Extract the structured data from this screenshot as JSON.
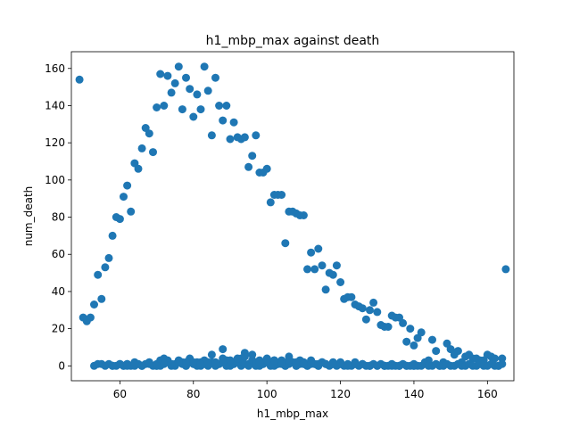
{
  "chart_data": {
    "type": "scatter",
    "title": "h1_mbp_max against death",
    "xlabel": "h1_mbp_max",
    "ylabel": "num_death",
    "xlim": [
      46.8,
      167.2
    ],
    "ylim": [
      -8,
      169
    ],
    "xticks": [
      60,
      80,
      100,
      120,
      140,
      160
    ],
    "yticks": [
      0,
      20,
      40,
      60,
      80,
      100,
      120,
      140,
      160
    ],
    "grid": false,
    "legend": "none",
    "marker_color": "#1f77b4",
    "series": [
      {
        "x": [
          49,
          50,
          51,
          52,
          53,
          54,
          55,
          56,
          57,
          58,
          59,
          60,
          61,
          62,
          63,
          64,
          65,
          66,
          67,
          68,
          69,
          70,
          71,
          72,
          73,
          74,
          75,
          76,
          77,
          78,
          79,
          80,
          81,
          82,
          83,
          84,
          85,
          86,
          87,
          88,
          89,
          90,
          91,
          92,
          93,
          94,
          95,
          96,
          97,
          98,
          99,
          100,
          101,
          102,
          103,
          104,
          105,
          106,
          107,
          108,
          109,
          110,
          111,
          112,
          113,
          114,
          115,
          116,
          117,
          118,
          119,
          120,
          121,
          122,
          123,
          124,
          125,
          126,
          127,
          128,
          129,
          130,
          131,
          132,
          133,
          134,
          135,
          136,
          137,
          138,
          139,
          140,
          141,
          142,
          143,
          144,
          145,
          146,
          147,
          148,
          149,
          150,
          151,
          152,
          153,
          154,
          155,
          156,
          157,
          158,
          159,
          160,
          161,
          162,
          163,
          164,
          165,
          53,
          55,
          56,
          57,
          58,
          59,
          60,
          61,
          62,
          63,
          64,
          65,
          66,
          67,
          68,
          69,
          70,
          71,
          72,
          73,
          74,
          75,
          76,
          77,
          78,
          79,
          80,
          81,
          82,
          83,
          84,
          85,
          86,
          87,
          88,
          89,
          90,
          91,
          92,
          93,
          94,
          95,
          96,
          97,
          98,
          99,
          100,
          101,
          102,
          103,
          104,
          105,
          106,
          107,
          108,
          109,
          110,
          111,
          112,
          113,
          114,
          115,
          116,
          117,
          118,
          119,
          120,
          121,
          122,
          123,
          124,
          125,
          126,
          127,
          128,
          129,
          130,
          131,
          132,
          133,
          134,
          135,
          136,
          137,
          138,
          139,
          140,
          141,
          142,
          143,
          144,
          145,
          146,
          147,
          148,
          149,
          150,
          151,
          152,
          153,
          154,
          155,
          156,
          157,
          158,
          159,
          160,
          161,
          162,
          163,
          164,
          54,
          58,
          60,
          61,
          62,
          64,
          66,
          68,
          70,
          71,
          72,
          73,
          74,
          75,
          76,
          77,
          78,
          79,
          80,
          81,
          82,
          83,
          84,
          85,
          86,
          87,
          88,
          89,
          90,
          91,
          92,
          93,
          94,
          95,
          96,
          97,
          98,
          99,
          100,
          101,
          102,
          103,
          104,
          105,
          106,
          107,
          108,
          109,
          110,
          111,
          112,
          113,
          114,
          115,
          116,
          118,
          120,
          122,
          124,
          126,
          128,
          130,
          132,
          134,
          136,
          138,
          140,
          62,
          66,
          70,
          72,
          74,
          76,
          78,
          80,
          82,
          84,
          86,
          88,
          90,
          92,
          94,
          96,
          98,
          100,
          102,
          104,
          106,
          108,
          110,
          112,
          114,
          116,
          118,
          120,
          124,
          128,
          132,
          136,
          140
        ],
        "y": [
          154,
          26,
          24,
          26,
          33,
          49,
          36,
          53,
          58,
          70,
          80,
          79,
          91,
          97,
          83,
          109,
          106,
          117,
          128,
          125,
          115,
          139,
          157,
          140,
          156,
          147,
          152,
          161,
          138,
          155,
          149,
          134,
          146,
          138,
          161,
          148,
          124,
          155,
          140,
          132,
          140,
          122,
          131,
          123,
          122,
          123,
          107,
          113,
          124,
          104,
          104,
          106,
          88,
          92,
          92,
          92,
          66,
          83,
          83,
          82,
          81,
          81,
          52,
          61,
          52,
          63,
          54,
          41,
          50,
          49,
          54,
          45,
          36,
          37,
          37,
          33,
          32,
          31,
          25,
          30,
          34,
          29,
          22,
          21,
          21,
          27,
          26,
          26,
          23,
          13,
          20,
          11,
          15,
          18,
          2,
          3,
          14,
          8,
          0,
          2,
          12,
          9,
          6,
          8,
          2,
          5,
          6,
          4,
          4,
          3,
          3,
          6,
          5,
          4,
          0,
          4,
          52,
          0,
          1,
          0,
          1,
          0,
          0,
          1,
          0,
          1,
          0,
          0,
          1,
          0,
          1,
          2,
          0,
          1,
          0,
          2,
          3,
          1,
          0,
          2,
          1,
          0,
          3,
          1,
          0,
          2,
          1,
          0,
          6,
          2,
          1,
          4,
          0,
          2,
          1,
          3,
          0,
          7,
          1,
          2,
          0,
          3,
          1,
          4,
          2,
          0,
          1,
          3,
          0,
          5,
          2,
          0,
          1,
          2,
          0,
          3,
          1,
          0,
          2,
          1,
          0,
          2,
          0,
          1,
          0,
          1,
          0,
          2,
          0,
          1,
          0,
          0,
          1,
          0,
          1,
          0,
          0,
          1,
          0,
          0,
          1,
          0,
          0,
          1,
          0,
          0,
          1,
          0,
          0,
          1,
          0,
          0,
          1,
          0,
          0,
          1,
          0,
          0,
          1,
          0,
          0,
          1,
          0,
          0,
          1,
          0,
          0,
          1,
          1,
          0,
          1,
          0,
          1,
          2,
          0,
          1,
          0,
          3,
          4,
          2,
          0,
          1,
          3,
          2,
          0,
          4,
          1,
          2,
          0,
          3,
          1,
          2,
          0,
          1,
          9,
          3,
          0,
          1,
          2,
          4,
          1,
          0,
          3,
          2,
          0,
          1,
          2,
          0,
          3,
          1,
          2,
          0,
          1,
          2,
          0,
          3,
          1,
          0,
          2,
          1,
          0,
          2,
          1,
          1,
          2,
          0,
          1,
          1,
          0,
          0,
          0,
          0,
          0,
          0,
          0,
          0,
          0,
          0,
          1,
          1,
          2,
          2,
          2,
          1,
          2,
          1,
          2,
          3,
          4,
          5,
          6,
          2,
          3,
          3,
          1,
          3,
          2,
          1,
          1,
          1,
          1,
          1,
          1,
          1,
          0,
          0,
          0,
          0
        ]
      }
    ]
  }
}
